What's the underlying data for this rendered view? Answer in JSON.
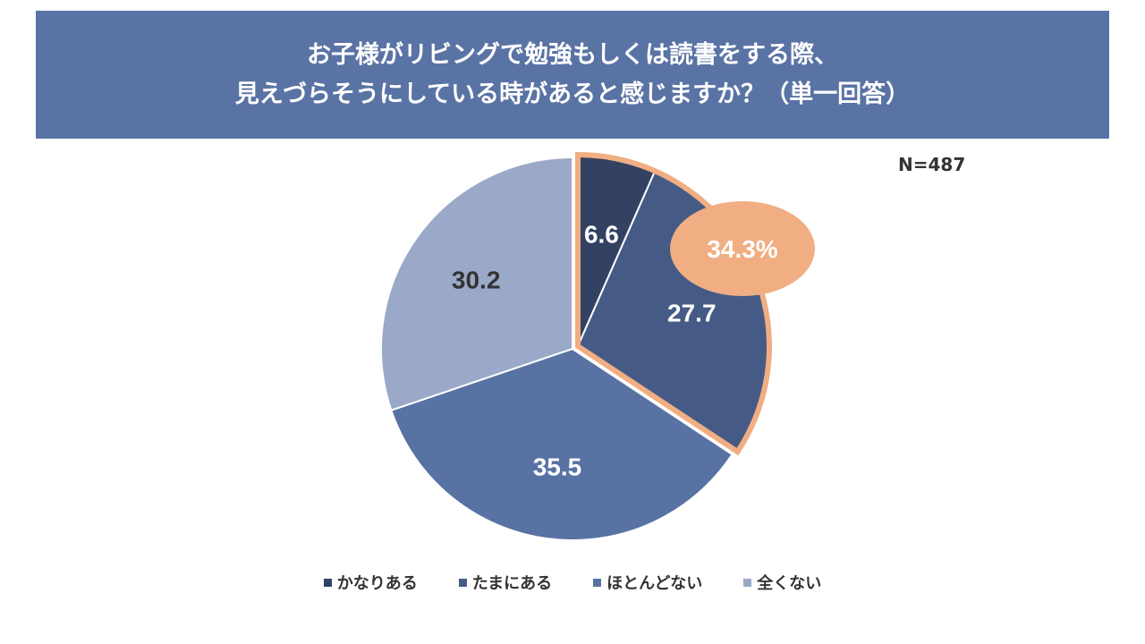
{
  "title_lines": [
    "お子様がリビングで勉強もしくは読書をする際、",
    "見えづらそうにしている時があると感じますか？（単一回答）"
  ],
  "sample_size": "N=487",
  "chart_data": {
    "type": "pie",
    "title": "お子様がリビングで勉強もしくは読書をする際、見えづらそうにしている時があると感じますか？（単一回答）",
    "unit": "%",
    "categories": [
      "かなりある",
      "たまにある",
      "ほとんどない",
      "全くない"
    ],
    "values": [
      6.6,
      27.7,
      35.5,
      30.2
    ],
    "labels": [
      "6.6",
      "27.7",
      "35.5",
      "30.2"
    ],
    "colors": [
      "#334263",
      "#455b86",
      "#5872a3",
      "#9aa9c8"
    ],
    "label_colors": [
      "#ffffff",
      "#ffffff",
      "#ffffff",
      "#333333"
    ],
    "highlight": {
      "categories": [
        "かなりある",
        "たまにある"
      ],
      "total_label": "34.3%",
      "color": "#f0ae82"
    },
    "legend_position": "bottom"
  }
}
